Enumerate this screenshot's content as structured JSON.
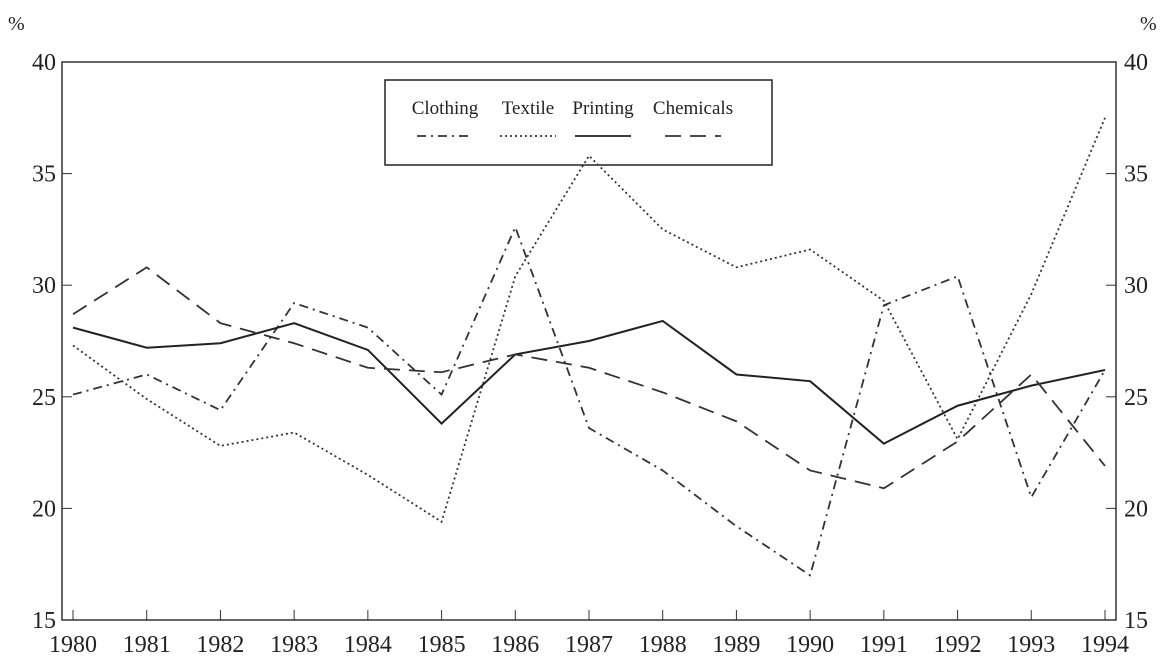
{
  "chart_data": {
    "type": "line",
    "y_label": "%",
    "y2_label": "%",
    "x": [
      "1980",
      "1981",
      "1982",
      "1983",
      "1984",
      "1985",
      "1986",
      "1987",
      "1988",
      "1989",
      "1990",
      "1991",
      "1992",
      "1993",
      "1994"
    ],
    "ylim": [
      15,
      40
    ],
    "yticks": [
      15,
      20,
      25,
      30,
      35,
      40
    ],
    "y2lim": [
      15,
      40
    ],
    "y2ticks": [
      15,
      20,
      25,
      30,
      35,
      40
    ],
    "legend": "top-center",
    "series": [
      {
        "name": "Clothing",
        "color": "#333333",
        "style": "dash-dot",
        "values": [
          25.1,
          26.0,
          24.4,
          29.2,
          28.1,
          25.1,
          32.6,
          23.6,
          21.7,
          19.2,
          17.0,
          29.1,
          30.4,
          20.5,
          26.2
        ]
      },
      {
        "name": "Textile",
        "color": "#333333",
        "style": "dotted",
        "values": [
          27.3,
          24.9,
          22.8,
          23.4,
          21.5,
          19.4,
          30.4,
          35.8,
          32.5,
          30.8,
          31.6,
          29.3,
          23.1,
          29.6,
          37.5
        ]
      },
      {
        "name": "Printing",
        "color": "#222222",
        "style": "solid",
        "values": [
          28.1,
          27.2,
          27.4,
          28.3,
          27.1,
          23.8,
          26.9,
          27.5,
          28.4,
          26.0,
          25.7,
          22.9,
          24.6,
          25.5,
          26.2
        ]
      },
      {
        "name": "Chemicals",
        "color": "#333333",
        "style": "dashed",
        "values": [
          28.7,
          30.8,
          28.3,
          27.4,
          26.3,
          26.1,
          26.9,
          26.3,
          25.2,
          23.9,
          21.7,
          20.9,
          23.0,
          26.0,
          21.9
        ]
      }
    ]
  }
}
